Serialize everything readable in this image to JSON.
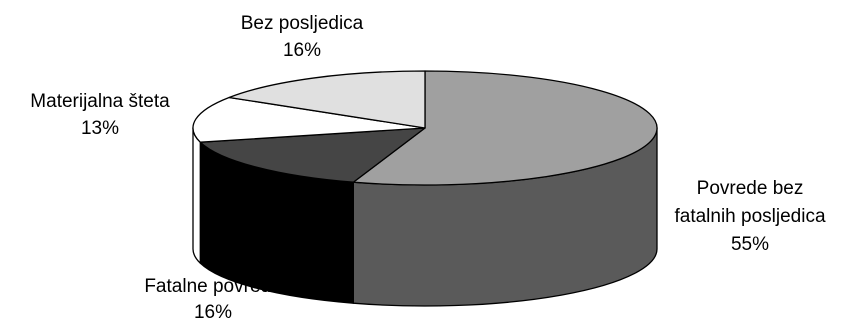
{
  "chart_data": {
    "type": "pie",
    "title": "",
    "three_d": true,
    "slices": [
      {
        "label_lines": [
          "Povrede bez",
          "fatalnih posljedica"
        ],
        "percent_label": "55%",
        "value": 55,
        "color": "#a0a0a0",
        "side_color": "#5a5a5a"
      },
      {
        "label_lines": [
          "Fatalne povrede"
        ],
        "percent_label": "16%",
        "value": 16,
        "color": "#454545",
        "side_color": "#000000"
      },
      {
        "label_lines": [
          "Materijalna šteta"
        ],
        "percent_label": "13%",
        "value": 13,
        "color": "#ffffff",
        "side_color": "#ffffff"
      },
      {
        "label_lines": [
          "Bez posljedica"
        ],
        "percent_label": "16%",
        "value": 16,
        "color": "#e0e0e0",
        "side_color": "#c0c0c0"
      }
    ]
  }
}
